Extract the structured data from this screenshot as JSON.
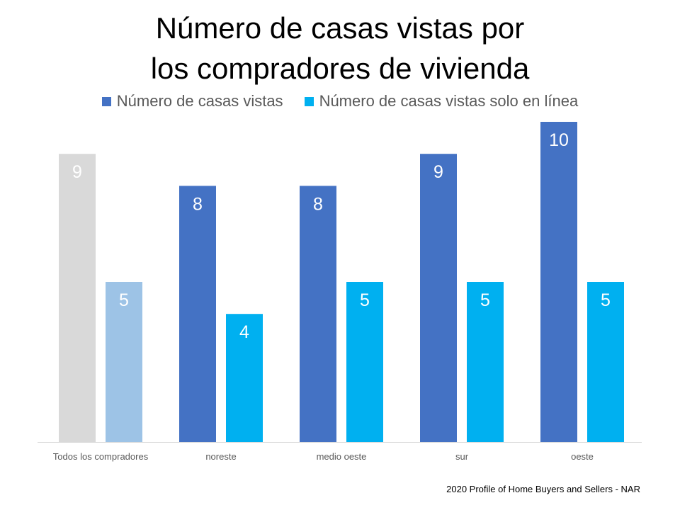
{
  "chart_data": {
    "type": "bar",
    "title_lines": [
      "Número de casas vistas por",
      "los compradores de vivienda"
    ],
    "categories": [
      "Todos los compradores",
      "noreste",
      "medio oeste",
      "sur",
      "oeste"
    ],
    "series": [
      {
        "name": "Número de casas vistas",
        "values": [
          9,
          8,
          8,
          9,
          10
        ],
        "color": "#4472c4",
        "first_bar_color": "#d9d9d9"
      },
      {
        "name": "Número de casas vistas solo en línea",
        "values": [
          5,
          4,
          5,
          5,
          5
        ],
        "color": "#00b0f0",
        "first_bar_color": "#9dc3e6"
      }
    ],
    "ylim": [
      0,
      10
    ],
    "grid": false,
    "legend": "top",
    "data_labels": true
  },
  "footer": "2020 Profile of Home Buyers and Sellers - NAR"
}
